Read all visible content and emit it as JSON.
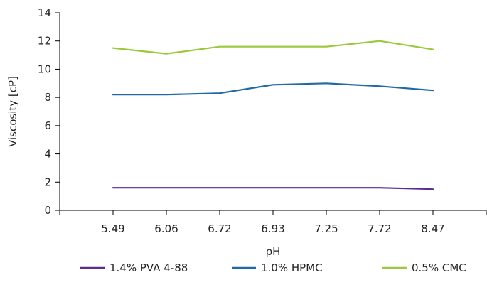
{
  "chart_data": {
    "type": "line",
    "title": "",
    "xlabel": "pH",
    "ylabel": "Viscosity [cP]",
    "categories": [
      "5.49",
      "6.06",
      "6.72",
      "6.93",
      "7.25",
      "7.72",
      "8.47"
    ],
    "ylim": [
      0,
      14
    ],
    "yticks": [
      "0",
      "2",
      "4",
      "6",
      "8",
      "10",
      "12",
      "14"
    ],
    "grid": false,
    "legend_position": "bottom",
    "series": [
      {
        "name": "1.4% PVA 4-88",
        "color": "#5b2d8e",
        "values": [
          1.6,
          1.6,
          1.6,
          1.6,
          1.6,
          1.6,
          1.5
        ]
      },
      {
        "name": "1.0% HPMC",
        "color": "#1f6aa5",
        "values": [
          8.2,
          8.2,
          8.3,
          8.9,
          9.0,
          8.8,
          8.5
        ]
      },
      {
        "name": "0.5% CMC",
        "color": "#9cc93b",
        "values": [
          11.5,
          11.1,
          11.6,
          11.6,
          11.6,
          12.0,
          11.4
        ]
      }
    ]
  }
}
